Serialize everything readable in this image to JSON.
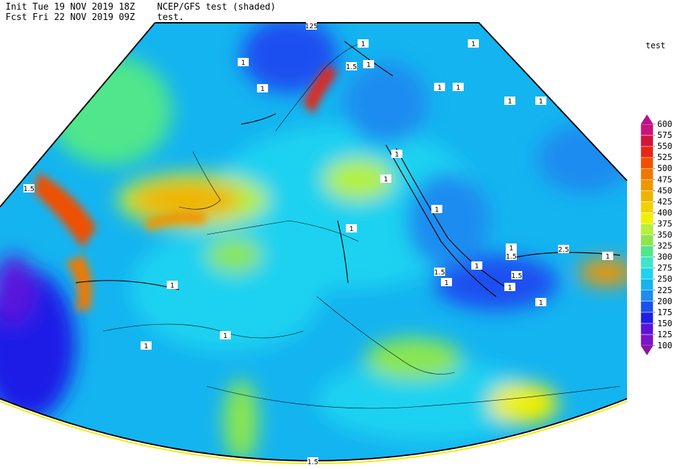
{
  "header": {
    "init": "Init  Tue 19 NOV 2019 18Z",
    "title": "NCEP/GFS test (shaded)",
    "forecast": "Fcst Fri 22 NOV 2019 09Z",
    "subtitle": "test."
  },
  "colorbar": {
    "title": "test",
    "levels": [
      100,
      125,
      150,
      175,
      200,
      225,
      250,
      275,
      300,
      325,
      350,
      375,
      400,
      425,
      450,
      475,
      500,
      525,
      550,
      575,
      600
    ],
    "colors": [
      "#7c14c8",
      "#5a14dc",
      "#1e1ee6",
      "#1e50f0",
      "#1e8cf0",
      "#14b4f0",
      "#1ed2f0",
      "#3ce6c8",
      "#50e68c",
      "#8ce650",
      "#b4f03c",
      "#f0f000",
      "#f0d200",
      "#f0b400",
      "#f09600",
      "#f07800",
      "#f05000",
      "#e62814",
      "#d2143c",
      "#c8147c"
    ],
    "under_color": "#8c14a0",
    "over_color": "#b41490"
  },
  "contour_labels": [
    "125",
    "1",
    "1",
    "1.5",
    "1",
    "1",
    "1",
    "1",
    "1",
    "1",
    "1",
    "1.5",
    "1",
    "1",
    "1",
    "1",
    "1",
    "1.5",
    "2.5",
    "1",
    "1",
    "1.5",
    "1",
    "1.5",
    "1",
    "1",
    "1",
    "1",
    "1",
    "1.5"
  ]
}
